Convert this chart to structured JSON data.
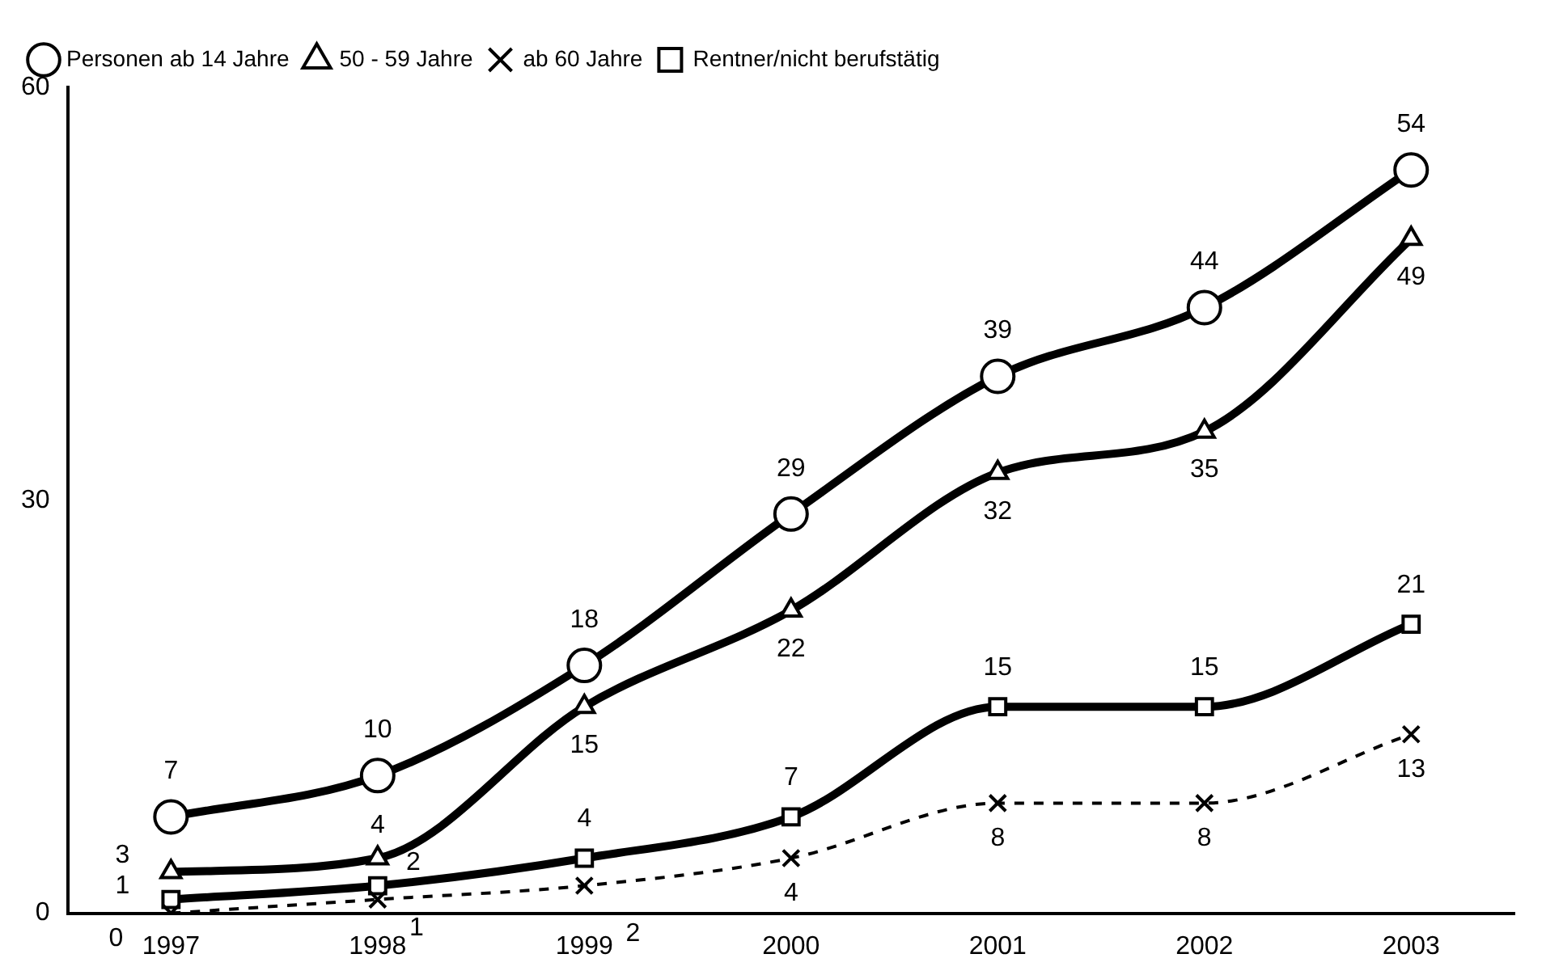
{
  "chart_data": {
    "type": "line",
    "categories": [
      "1997",
      "1998",
      "1999",
      "2000",
      "2001",
      "2002",
      "2003"
    ],
    "series": [
      {
        "name": "Personen ab 14 Jahre",
        "color": "#000000",
        "marker": "circle",
        "line_style": "solid",
        "values": [
          7,
          10,
          18,
          29,
          39,
          44,
          54
        ]
      },
      {
        "name": "50 - 59 Jahre",
        "color": "#000000",
        "marker": "triangle",
        "line_style": "solid",
        "values": [
          3,
          4,
          15,
          22,
          32,
          35,
          49
        ]
      },
      {
        "name": "ab 60 Jahre",
        "color": "#000000",
        "marker": "cross",
        "line_style": "dashed",
        "values": [
          0,
          1,
          2,
          4,
          8,
          8,
          13
        ]
      },
      {
        "name": "Rentner/nicht berufstätig",
        "color": "#000000",
        "marker": "square",
        "line_style": "solid",
        "values": [
          1,
          2,
          4,
          7,
          15,
          15,
          21
        ]
      }
    ],
    "ylim": [
      0,
      60
    ],
    "yticks": [
      0,
      30,
      60
    ],
    "grid": false,
    "legend": "top left",
    "data_labels": true
  }
}
